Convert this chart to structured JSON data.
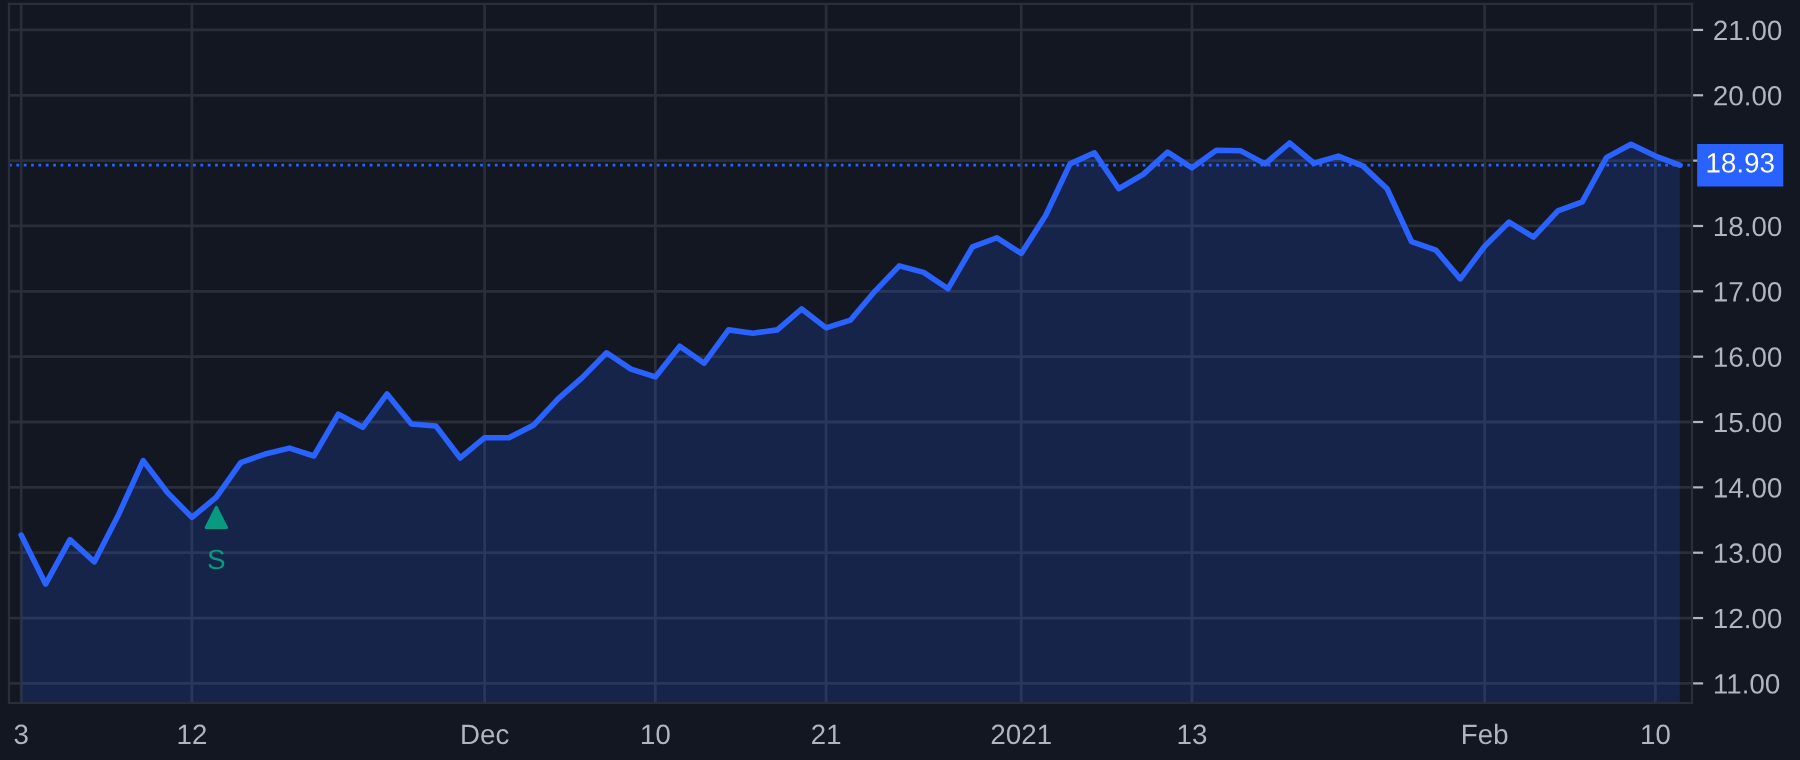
{
  "chart_data": {
    "type": "area",
    "categories": [
      "3",
      null,
      null,
      null,
      null,
      null,
      null,
      "12",
      null,
      null,
      null,
      null,
      null,
      null,
      null,
      null,
      null,
      null,
      null,
      "Dec",
      null,
      null,
      null,
      null,
      null,
      null,
      "10",
      null,
      null,
      null,
      null,
      null,
      null,
      "21",
      null,
      null,
      null,
      null,
      null,
      null,
      null,
      "2021",
      null,
      null,
      null,
      null,
      null,
      null,
      "13",
      null,
      null,
      null,
      null,
      null,
      null,
      null,
      null,
      null,
      null,
      null,
      "Feb",
      null,
      null,
      null,
      null,
      null,
      null,
      "10",
      null
    ],
    "series": [
      {
        "color": "#2962ff",
        "values": [
          13.27,
          12.52,
          13.2,
          12.86,
          13.59,
          14.41,
          13.92,
          13.54,
          13.85,
          14.38,
          14.51,
          14.6,
          14.48,
          15.12,
          14.92,
          15.43,
          14.97,
          14.94,
          14.45,
          14.76,
          14.76,
          14.95,
          15.35,
          15.68,
          16.06,
          15.81,
          15.69,
          16.16,
          15.9,
          16.41,
          16.36,
          16.41,
          16.73,
          16.44,
          16.56,
          17.0,
          17.39,
          17.29,
          17.04,
          17.68,
          17.82,
          17.58,
          18.16,
          18.95,
          19.12,
          18.57,
          18.79,
          19.13,
          18.89,
          19.16,
          19.15,
          18.95,
          19.27,
          18.96,
          19.07,
          18.92,
          18.57,
          17.76,
          17.63,
          17.19,
          17.69,
          18.06,
          17.83,
          18.23,
          18.37,
          19.05,
          19.25,
          19.07,
          18.93
        ]
      },
      {
        "type": "scatter",
        "marker": "triangle",
        "color": "#089981",
        "values": [
          null,
          null,
          null,
          null,
          null,
          null,
          null,
          null,
          13.54,
          null,
          null,
          null,
          null,
          null,
          null,
          null,
          null,
          null,
          null,
          null,
          null,
          null,
          null,
          null,
          null,
          null,
          null,
          null,
          null,
          null,
          null,
          null,
          null,
          null,
          null,
          null,
          null,
          null,
          null,
          null,
          null,
          null,
          null,
          null,
          null,
          null,
          null,
          null,
          null,
          null,
          null,
          null,
          null,
          null,
          null,
          null,
          null,
          null,
          null,
          null,
          null,
          null,
          null,
          null,
          null,
          null,
          null,
          null,
          null
        ]
      }
    ],
    "annotations": [
      "S"
    ],
    "ref_lines": [
      {
        "axis": "y",
        "value": 18.93,
        "label": "18.93",
        "color": "#2962ff",
        "line_style": "dotted"
      }
    ],
    "ylim": [
      10.7,
      21.4
    ],
    "yticks": [
      {
        "value": 11,
        "label": "11.00"
      },
      {
        "value": 12,
        "label": "12.00"
      },
      {
        "value": 13,
        "label": "13.00"
      },
      {
        "value": 14,
        "label": "14.00"
      },
      {
        "value": 15,
        "label": "15.00"
      },
      {
        "value": 16,
        "label": "16.00"
      },
      {
        "value": 17,
        "label": "17.00"
      },
      {
        "value": 18,
        "label": "18.00"
      },
      {
        "value": 19,
        "label": null
      },
      {
        "value": 20,
        "label": "20.00"
      },
      {
        "value": 21,
        "label": "21.00"
      }
    ],
    "grid": true
  }
}
